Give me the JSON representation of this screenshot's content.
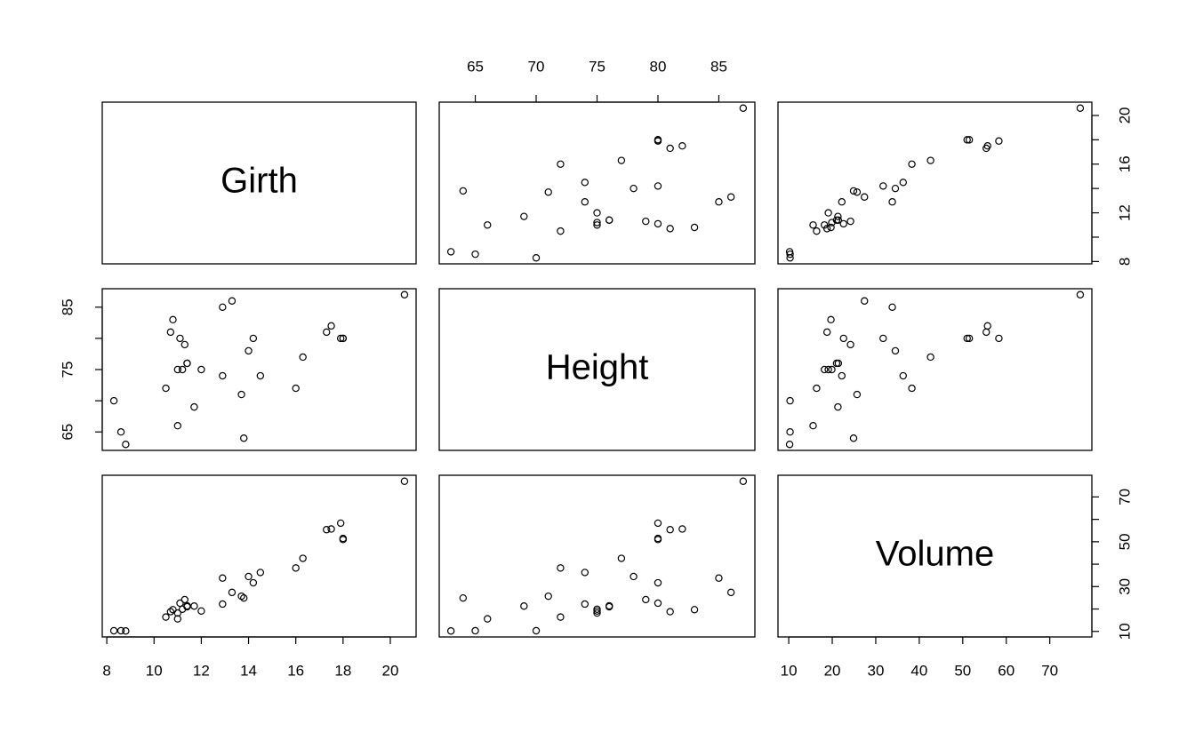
{
  "chart_data": {
    "type": "pairs",
    "variables": [
      {
        "name": "Girth",
        "lim": [
          7.808,
          21.092
        ],
        "ticks": [
          8,
          10,
          12,
          14,
          16,
          18,
          20
        ],
        "values": [
          8.3,
          8.6,
          8.8,
          10.5,
          10.7,
          10.8,
          11.0,
          11.0,
          11.1,
          11.2,
          11.3,
          11.4,
          11.4,
          11.7,
          12.0,
          12.9,
          12.9,
          13.3,
          13.7,
          13.8,
          14.0,
          14.2,
          14.5,
          16.0,
          16.3,
          17.3,
          17.5,
          17.9,
          18.0,
          18.0,
          20.6
        ]
      },
      {
        "name": "Height",
        "lim": [
          62.04,
          87.96
        ],
        "ticks": [
          65,
          70,
          75,
          80,
          85
        ],
        "values": [
          70,
          65,
          63,
          72,
          81,
          83,
          66,
          75,
          80,
          75,
          79,
          76,
          76,
          69,
          75,
          74,
          85,
          86,
          71,
          64,
          78,
          80,
          74,
          72,
          77,
          81,
          82,
          80,
          80,
          80,
          87
        ]
      },
      {
        "name": "Volume",
        "lim": [
          7.528,
          79.672
        ],
        "ticks": [
          10,
          20,
          30,
          40,
          50,
          60,
          70
        ],
        "values": [
          10.3,
          10.3,
          10.2,
          16.4,
          18.8,
          19.7,
          15.6,
          18.2,
          22.6,
          19.9,
          24.2,
          21.0,
          21.4,
          21.3,
          19.1,
          22.2,
          33.8,
          27.4,
          25.7,
          24.9,
          34.5,
          31.7,
          36.3,
          38.3,
          42.6,
          55.4,
          55.7,
          58.3,
          51.5,
          51.0,
          77.0
        ]
      }
    ]
  }
}
